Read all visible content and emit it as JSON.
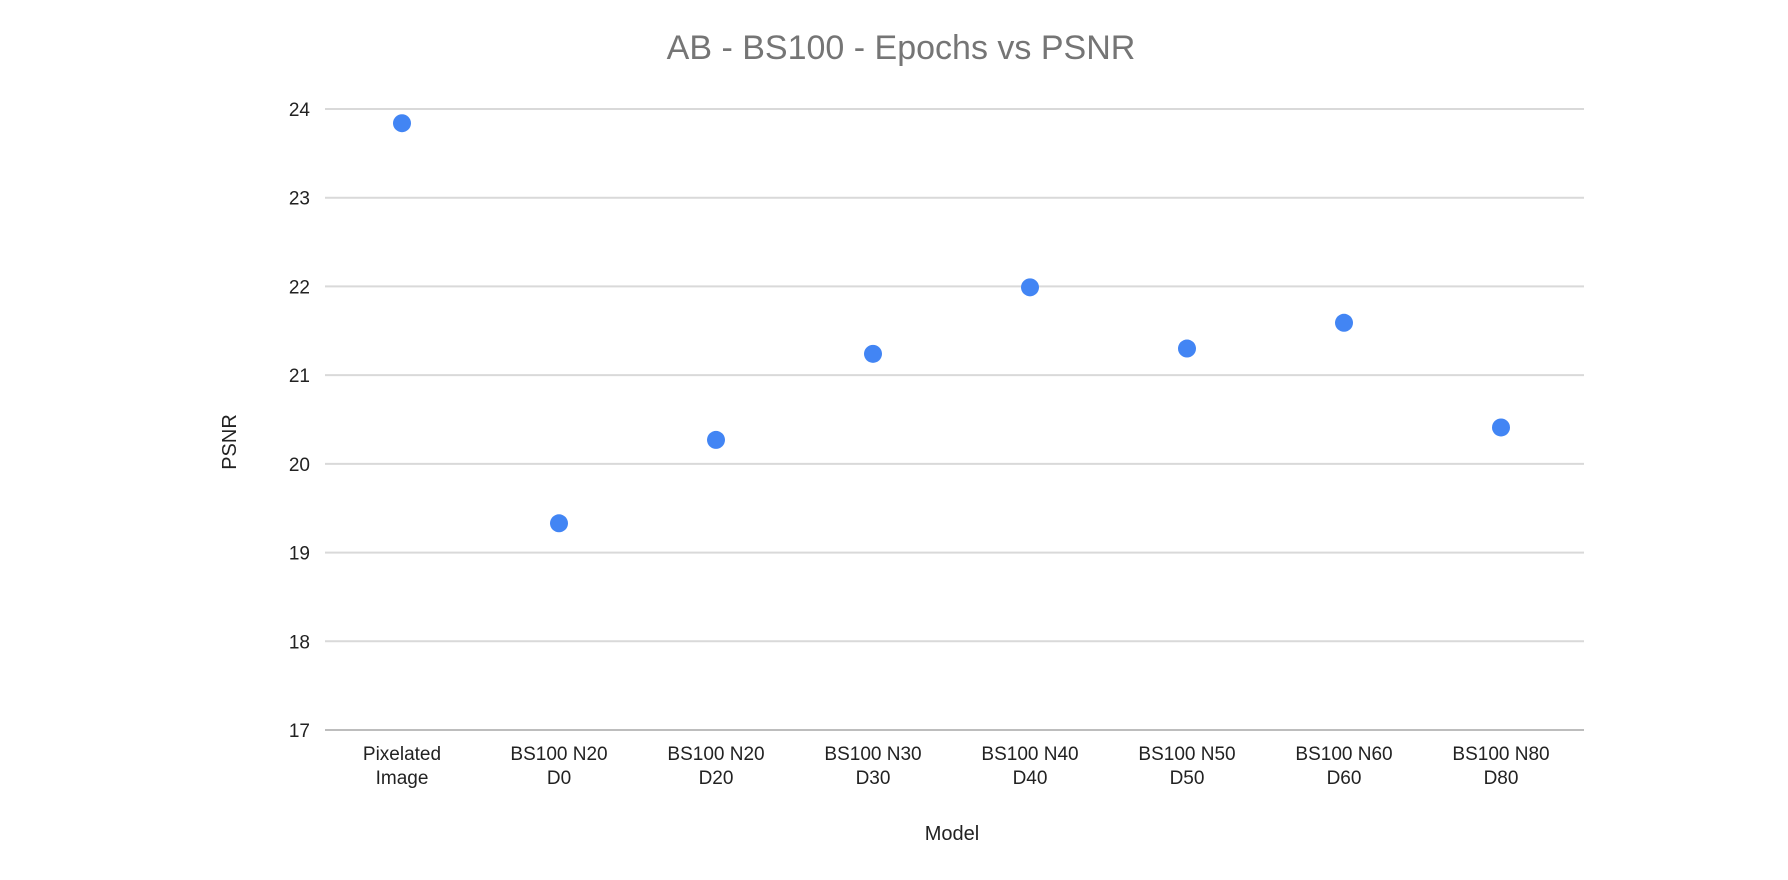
{
  "chart_data": {
    "type": "scatter",
    "title": "AB - BS100 - Epochs vs PSNR",
    "xlabel": "Model",
    "ylabel": "PSNR",
    "ylim": [
      17,
      24
    ],
    "yticks": [
      17,
      18,
      19,
      20,
      21,
      22,
      23,
      24
    ],
    "grid": true,
    "categories": [
      [
        "Pixelated",
        "Image"
      ],
      [
        "BS100 N20",
        "D0"
      ],
      [
        "BS100 N20",
        "D20"
      ],
      [
        "BS100 N30",
        "D30"
      ],
      [
        "BS100 N40",
        "D40"
      ],
      [
        "BS100 N50",
        "D50"
      ],
      [
        "BS100 N60",
        "D60"
      ],
      [
        "BS100 N80",
        "D80"
      ]
    ],
    "series": [
      {
        "color": "#4285f4",
        "values": [
          23.84,
          19.33,
          20.27,
          21.24,
          21.99,
          21.3,
          21.59,
          20.41
        ]
      }
    ]
  }
}
